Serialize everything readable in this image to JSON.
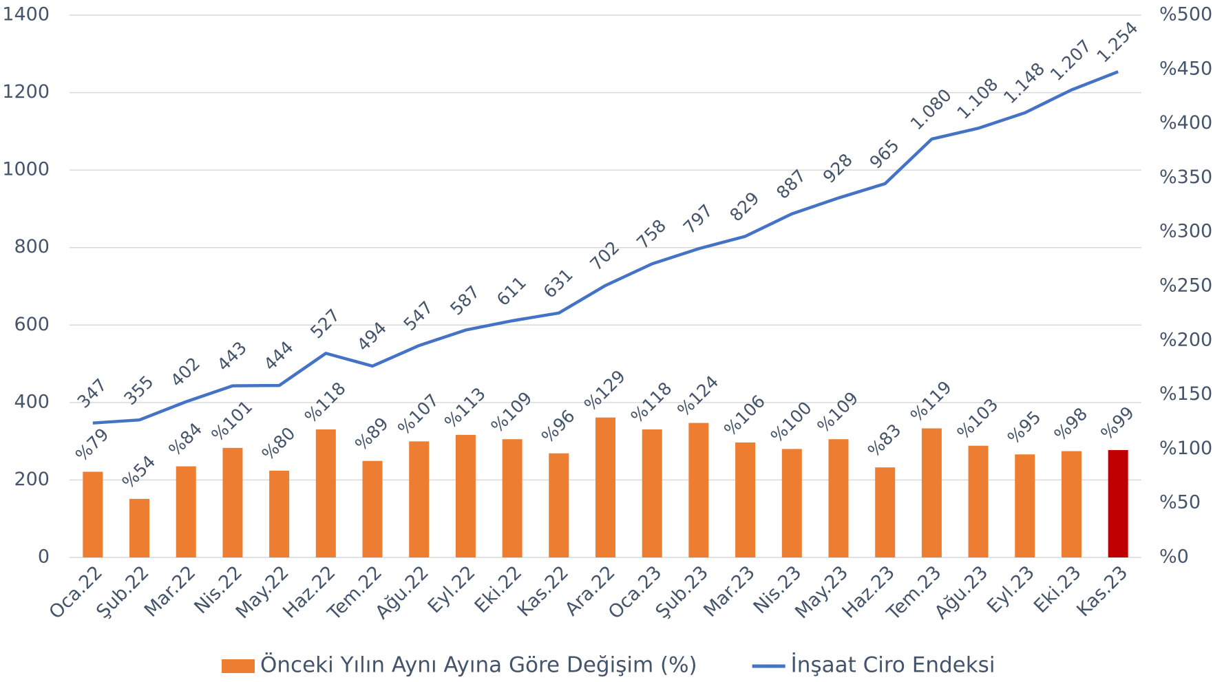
{
  "chart_data": {
    "type": "bar_line",
    "categories": [
      "Oca.22",
      "Şub.22",
      "Mar.22",
      "Nis.22",
      "May.22",
      "Haz.22",
      "Tem.22",
      "Ağu.22",
      "Eyl.22",
      "Eki.22",
      "Kas.22",
      "Ara.22",
      "Oca.23",
      "Şub.23",
      "Mar.23",
      "Nis.23",
      "May.23",
      "Haz.23",
      "Tem.23",
      "Ağu.23",
      "Eyl.23",
      "Eki.23",
      "Kas.23"
    ],
    "series": [
      {
        "name": "Önceki Yılın Aynı Ayına Göre Değişim (%)",
        "type": "bar",
        "axis": "y2",
        "color": "#ed7d31",
        "colors": [
          "#ed7d31",
          "#ed7d31",
          "#ed7d31",
          "#ed7d31",
          "#ed7d31",
          "#ed7d31",
          "#ed7d31",
          "#ed7d31",
          "#ed7d31",
          "#ed7d31",
          "#ed7d31",
          "#ed7d31",
          "#ed7d31",
          "#ed7d31",
          "#ed7d31",
          "#ed7d31",
          "#ed7d31",
          "#ed7d31",
          "#ed7d31",
          "#ed7d31",
          "#ed7d31",
          "#ed7d31",
          "#c00000"
        ],
        "values": [
          79,
          54,
          84,
          101,
          80,
          118,
          89,
          107,
          113,
          109,
          96,
          129,
          118,
          124,
          106,
          100,
          109,
          83,
          119,
          103,
          95,
          98,
          99
        ],
        "value_labels": [
          "%79",
          "%54",
          "%84",
          "%101",
          "%80",
          "%118",
          "%89",
          "%107",
          "%113",
          "%109",
          "%96",
          "%129",
          "%118",
          "%124",
          "%106",
          "%100",
          "%109",
          "%83",
          "%119",
          "%103",
          "%95",
          "%98",
          "%99"
        ]
      },
      {
        "name": "İnşaat Ciro Endeksi",
        "type": "line",
        "axis": "y",
        "color": "#4472c4",
        "values": [
          347,
          355,
          402,
          443,
          444,
          527,
          494,
          547,
          587,
          611,
          631,
          702,
          758,
          797,
          829,
          887,
          928,
          965,
          1080,
          1108,
          1148,
          1207,
          1254
        ],
        "value_labels": [
          "347",
          "355",
          "402",
          "443",
          "444",
          "527",
          "494",
          "547",
          "587",
          "611",
          "631",
          "702",
          "758",
          "797",
          "829",
          "887",
          "928",
          "965",
          "1.080",
          "1.108",
          "1.148",
          "1.207",
          "1.254"
        ]
      }
    ],
    "ylim": [
      0,
      1400
    ],
    "yticks": [
      0,
      200,
      400,
      600,
      800,
      1000,
      1200,
      1400
    ],
    "y2lim": [
      0,
      500
    ],
    "y2ticks": [
      {
        "value": 0,
        "label": "%0"
      },
      {
        "value": 50,
        "label": "%50"
      },
      {
        "value": 100,
        "label": "%100"
      },
      {
        "value": 150,
        "label": "%150"
      },
      {
        "value": 200,
        "label": "%200"
      },
      {
        "value": 250,
        "label": "%250"
      },
      {
        "value": 300,
        "label": "%300"
      },
      {
        "value": 350,
        "label": "%350"
      },
      {
        "value": 400,
        "label": "%400"
      },
      {
        "value": 450,
        "label": "%450"
      },
      {
        "value": 500,
        "label": "%500"
      }
    ],
    "grid": true,
    "legend": "bottom"
  }
}
